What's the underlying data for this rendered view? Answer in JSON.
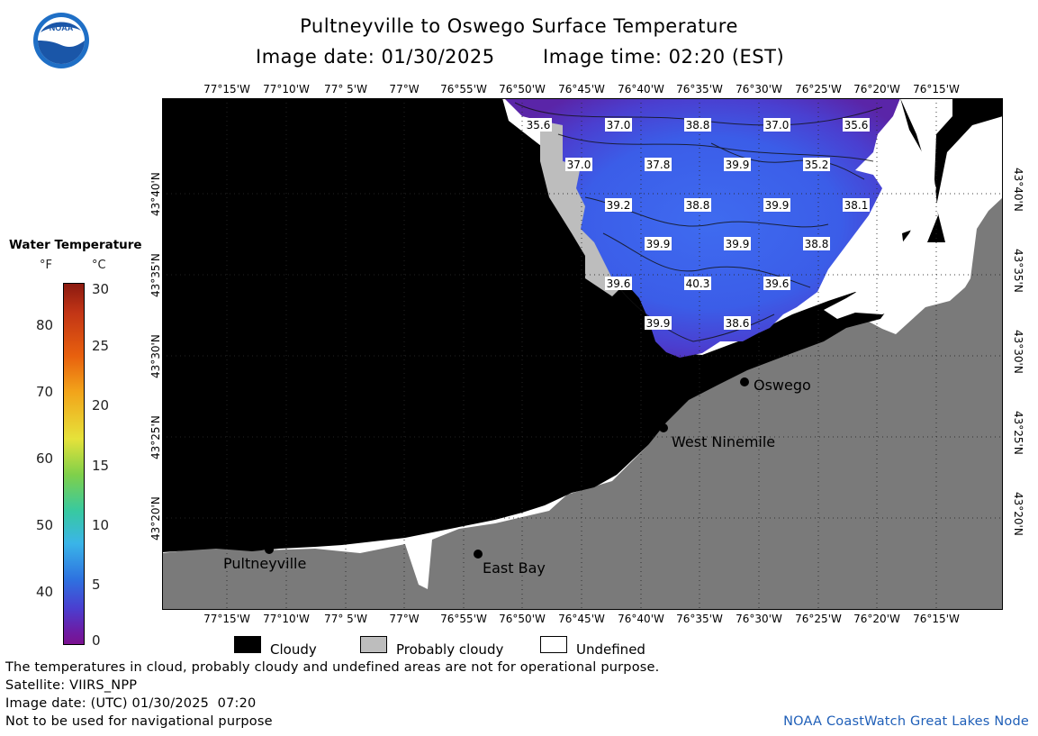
{
  "header": {
    "title": "Pultneyville to Oswego Surface Temperature",
    "subtitle_date": "Image date: 01/30/2025",
    "subtitle_time": "Image time: 02:20 (EST)"
  },
  "map": {
    "lon_labels": [
      "77°15'W",
      "77°10'W",
      "77° 5'W",
      "77°W",
      "76°55'W",
      "76°50'W",
      "76°45'W",
      "76°40'W",
      "76°35'W",
      "76°30'W",
      "76°25'W",
      "76°20'W",
      "76°15'W"
    ],
    "lat_labels": [
      "43°40'N",
      "43°35'N",
      "43°30'N",
      "43°25'N",
      "43°20'N"
    ],
    "temperature_labels": [
      "35.6",
      "37.0",
      "38.8",
      "37.0",
      "35.6",
      "37.0",
      "37.8",
      "39.9",
      "35.2",
      "39.2",
      "38.8",
      "39.9",
      "38.1",
      "39.9",
      "39.9",
      "38.8",
      "39.6",
      "40.3",
      "39.6",
      "39.9",
      "38.6"
    ],
    "places": [
      "Oswego",
      "West Ninemile",
      "East Bay",
      "Pultneyville"
    ]
  },
  "colorbar": {
    "title": "Water Temperature",
    "unit_f": "°F",
    "unit_c": "°C",
    "f_ticks": [
      "80",
      "70",
      "60",
      "50",
      "40"
    ],
    "c_ticks": [
      "30",
      "25",
      "20",
      "15",
      "10",
      "5",
      "0"
    ]
  },
  "legend": {
    "cloudy": "Cloudy",
    "probably_cloudy": "Probably cloudy",
    "undefined": "Undefined",
    "colors": {
      "cloudy": "#000000",
      "probably_cloudy": "#bdbdbd",
      "undefined": "#ffffff",
      "land": "#7a7a7a"
    }
  },
  "footer": {
    "disclaimer": "The temperatures in cloud, probably cloudy and undefined areas are not for operational purpose.",
    "satellite": "Satellite: VIIRS_NPP",
    "utc_date": "Image date: (UTC) 01/30/2025  07:20",
    "nav": "Not to be used for navigational purpose",
    "credit": "NOAA CoastWatch Great Lakes Node"
  },
  "logo_text": "NOAA"
}
